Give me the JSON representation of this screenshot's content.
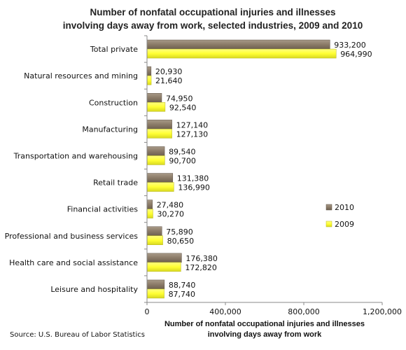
{
  "chart_data": {
    "type": "bar",
    "orientation": "horizontal",
    "title": [
      "Number of nonfatal occupational injuries and illnesses",
      "involving days away from work, selected industries, 2009 and 2010"
    ],
    "xlabel": [
      "Number of nonfatal occupational injuries and illnesses",
      "involving days away from work"
    ],
    "ylabel": "",
    "xlim": [
      0,
      1200000
    ],
    "xticks": [
      0,
      400000,
      800000,
      1200000
    ],
    "xtick_labels": [
      "0",
      "400,000",
      "800,000",
      "1,200,000"
    ],
    "grid": false,
    "legend_position": "right",
    "categories": [
      "Total private",
      "Natural  resources and mining",
      "Construction",
      "Manufacturing",
      "Transportation  and warehousing",
      "Retail trade",
      "Financial activities",
      "Professional and business services",
      "Health care and social assistance",
      "Leisure and hospitality"
    ],
    "series": [
      {
        "name": "2010",
        "color": "#8B7B68",
        "values": [
          933200,
          20930,
          74950,
          127140,
          89540,
          131380,
          27480,
          75890,
          176380,
          88740
        ],
        "labels": [
          "933,200",
          "20,930",
          "74,950",
          "127,140",
          "89,540",
          "131,380",
          "27,480",
          "75,890",
          "176,380",
          "88,740"
        ]
      },
      {
        "name": "2009",
        "color": "#FFFF33",
        "values": [
          964990,
          21640,
          92540,
          127130,
          90700,
          136990,
          30270,
          80650,
          172820,
          87740
        ],
        "labels": [
          "964,990",
          "21,640",
          "92,540",
          "127,130",
          "90,700",
          "136,990",
          "30,270",
          "80,650",
          "172,820",
          "87,740"
        ]
      }
    ],
    "source": "Source: U.S. Bureau of Labor Statistics"
  }
}
